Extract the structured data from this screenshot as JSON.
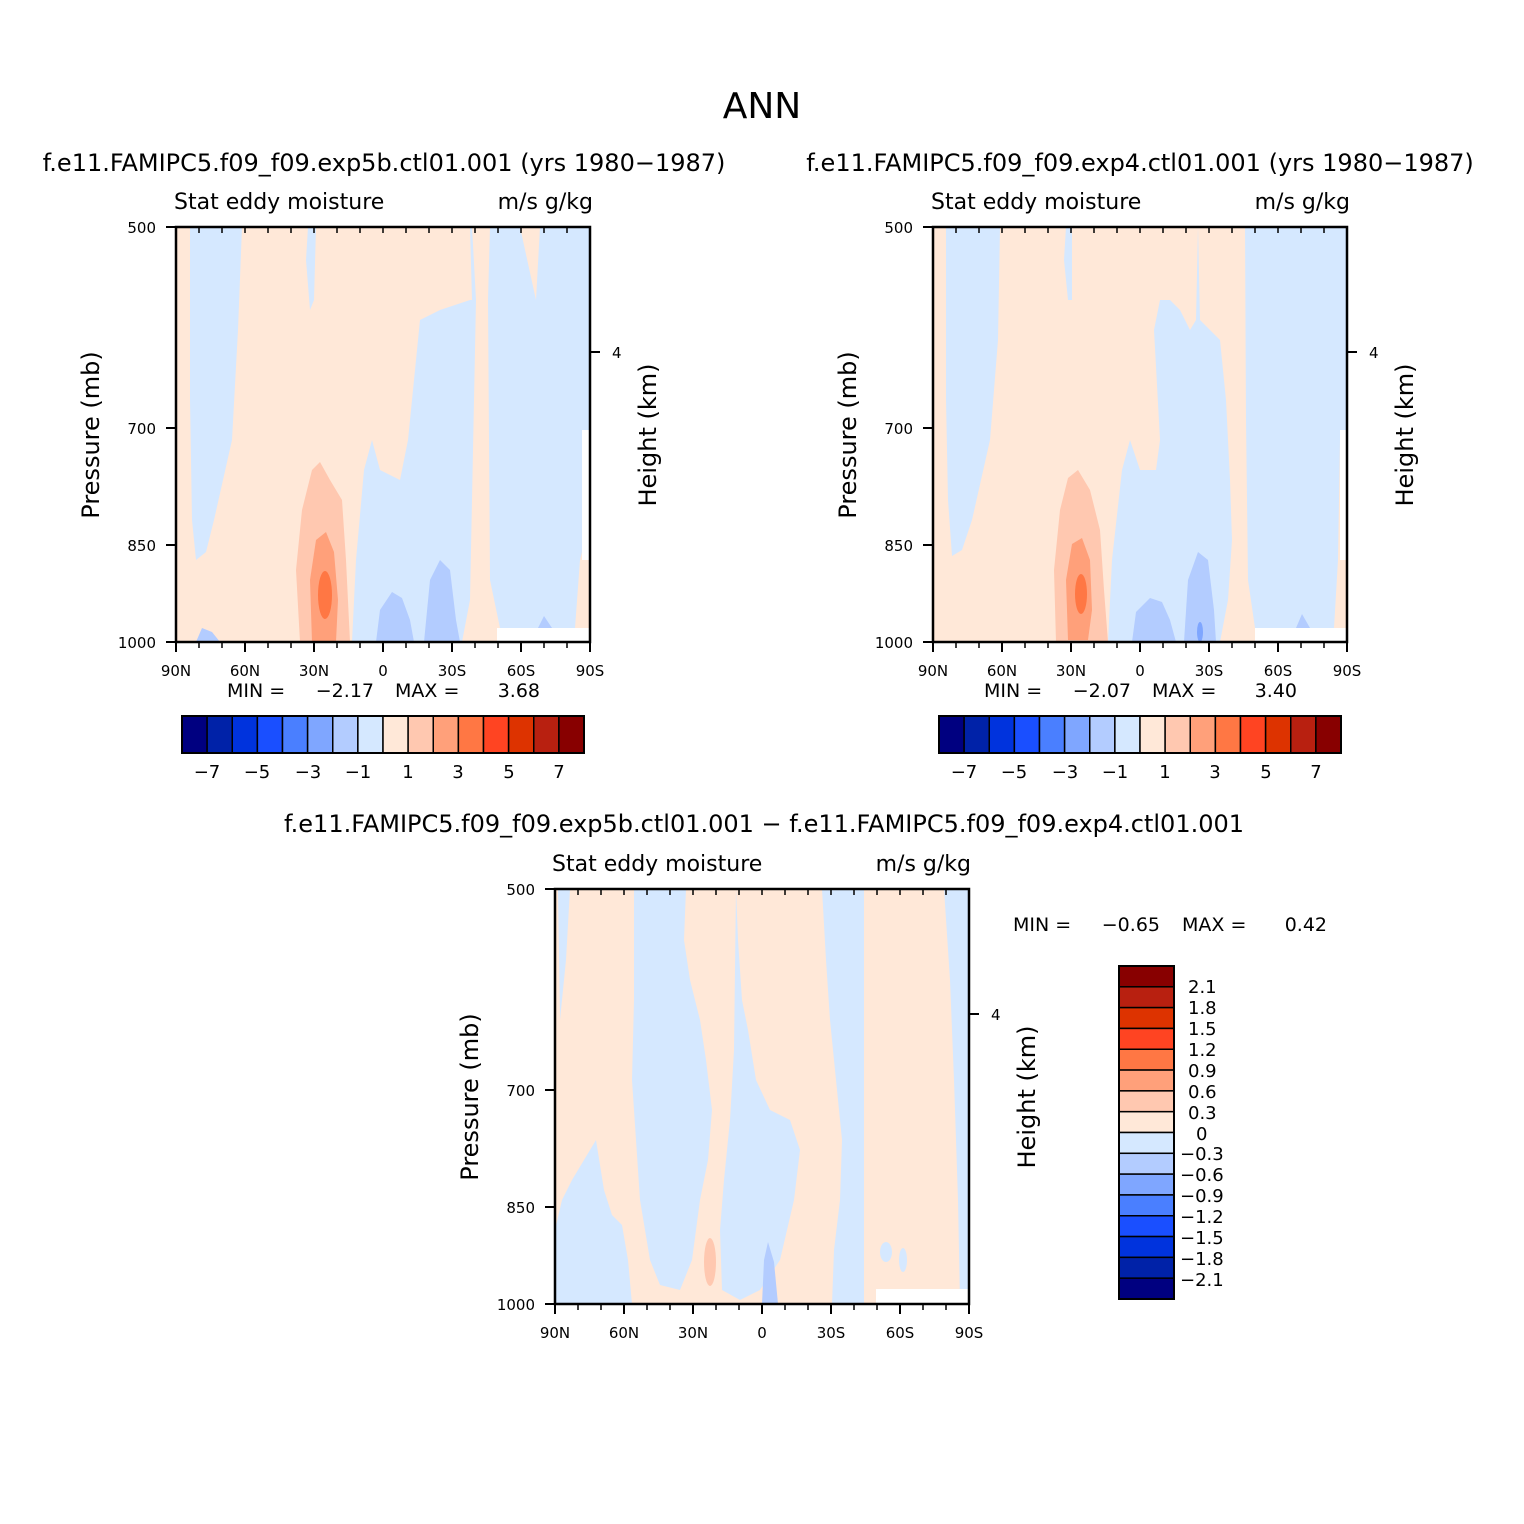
{
  "figure": {
    "title": "ANN"
  },
  "colors": {
    "main_scale": [
      "#000080",
      "#0022a8",
      "#0033dd",
      "#1a4fff",
      "#4a7fff",
      "#7fa6ff",
      "#b3ccff",
      "#d5e8ff",
      "#ffe8d8",
      "#ffc8b0",
      "#ffa07a",
      "#ff7744",
      "#ff4422",
      "#dd3300",
      "#b82010",
      "#880000"
    ],
    "diff_scale": [
      "#000080",
      "#0022a8",
      "#0033dd",
      "#1a4fff",
      "#4a7fff",
      "#7fa6ff",
      "#b3ccff",
      "#d5e8ff",
      "#ffe8d8",
      "#ffc8b0",
      "#ffa07a",
      "#ff7744",
      "#ff4422",
      "#dd3300",
      "#b82010",
      "#880000"
    ]
  },
  "chart_data": [
    {
      "type": "heatmap",
      "title": "f.e11.FAMIPC5.f09_f09.exp5b.ctl01.001 (yrs 1980-1987)",
      "subtitle_left": "Stat eddy moisture",
      "subtitle_right": "m/s g/kg",
      "ylabel": "Pressure (mb)",
      "ylabel_right": "Height (km)",
      "x_ticks": [
        "90N",
        "60N",
        "30N",
        "0",
        "30S",
        "60S",
        "90S"
      ],
      "y_ticks": [
        "500",
        "700",
        "850",
        "1000"
      ],
      "right_ticks": [
        "4"
      ],
      "min_label": "MIN =",
      "min_value": "-2.17",
      "max_label": "MAX =",
      "max_value": "3.68",
      "colorbar_labels": [
        "-7",
        "-5",
        "-3",
        "-1",
        "1",
        "3",
        "5",
        "7"
      ],
      "ylim": [
        1000,
        500
      ],
      "xlim": [
        90,
        -90
      ]
    },
    {
      "type": "heatmap",
      "title": "f.e11.FAMIPC5.f09_f09.exp4.ctl01.001 (yrs 1980-1987)",
      "subtitle_left": "Stat eddy moisture",
      "subtitle_right": "m/s g/kg",
      "ylabel": "Pressure (mb)",
      "ylabel_right": "Height (km)",
      "x_ticks": [
        "90N",
        "60N",
        "30N",
        "0",
        "30S",
        "60S",
        "90S"
      ],
      "y_ticks": [
        "500",
        "700",
        "850",
        "1000"
      ],
      "right_ticks": [
        "4"
      ],
      "min_label": "MIN =",
      "min_value": "-2.07",
      "max_label": "MAX =",
      "max_value": "3.40",
      "colorbar_labels": [
        "-7",
        "-5",
        "-3",
        "-1",
        "1",
        "3",
        "5",
        "7"
      ],
      "ylim": [
        1000,
        500
      ],
      "xlim": [
        90,
        -90
      ]
    },
    {
      "type": "heatmap",
      "title": "f.e11.FAMIPC5.f09_f09.exp5b.ctl01.001 - f.e11.FAMIPC5.f09_f09.exp4.ctl01.001",
      "subtitle_left": "Stat eddy moisture",
      "subtitle_right": "m/s g/kg",
      "ylabel": "Pressure (mb)",
      "ylabel_right": "Height (km)",
      "x_ticks": [
        "90N",
        "60N",
        "30N",
        "0",
        "30S",
        "60S",
        "90S"
      ],
      "y_ticks": [
        "500",
        "700",
        "850",
        "1000"
      ],
      "right_ticks": [
        "4"
      ],
      "min_label": "MIN =",
      "min_value": "-0.65",
      "max_label": "MAX =",
      "max_value": "0.42",
      "colorbar_labels": [
        "2.1",
        "1.8",
        "1.5",
        "1.2",
        "0.9",
        "0.6",
        "0.3",
        "0",
        "-0.3",
        "-0.6",
        "-0.9",
        "-1.2",
        "-1.5",
        "-1.8",
        "-2.1"
      ],
      "ylim": [
        1000,
        500
      ],
      "xlim": [
        90,
        -90
      ]
    }
  ]
}
